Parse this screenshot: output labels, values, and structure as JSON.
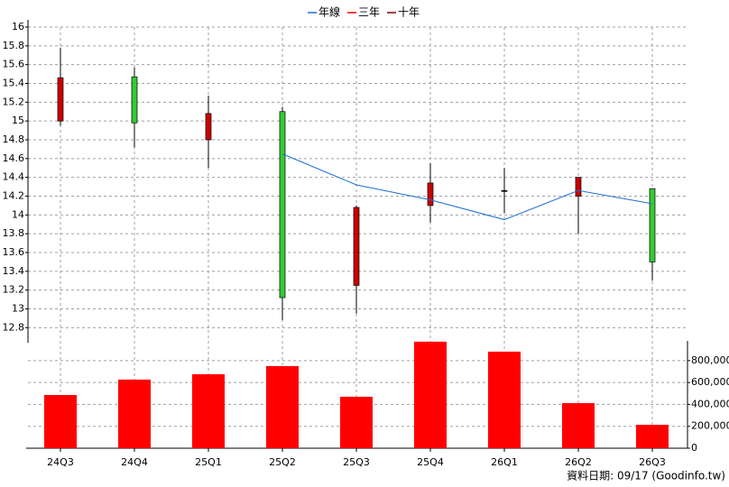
{
  "chart_data": {
    "type": "candlestick",
    "categories": [
      "24Q3",
      "24Q4",
      "25Q1",
      "25Q2",
      "25Q3",
      "25Q4",
      "26Q1",
      "26Q2",
      "26Q3"
    ],
    "open": [
      15.0,
      15.47,
      14.8,
      15.1,
      13.25,
      14.1,
      14.26,
      14.2,
      14.28
    ],
    "high": [
      15.78,
      15.57,
      15.27,
      15.15,
      14.1,
      14.55,
      14.5,
      14.4,
      14.28
    ],
    "low": [
      14.95,
      14.72,
      14.5,
      12.88,
      12.95,
      13.92,
      14.02,
      13.8,
      13.3
    ],
    "close": [
      15.46,
      14.98,
      15.08,
      13.12,
      14.08,
      14.34,
      14.26,
      14.4,
      13.5
    ],
    "up_color": "#cc0000",
    "down_color": "#33cc33",
    "flat_color": "#000000",
    "series": [
      {
        "name": "年線",
        "color": "#1f6fd0",
        "values": [
          null,
          null,
          null,
          14.65,
          14.32,
          14.16,
          13.95,
          14.26,
          14.12
        ]
      },
      {
        "name": "三年",
        "color": "#ff0000",
        "values": [
          null,
          null,
          null,
          null,
          null,
          null,
          null,
          null,
          null
        ]
      },
      {
        "name": "十年",
        "color": "#8b0000",
        "values": [
          null,
          null,
          null,
          null,
          null,
          null,
          null,
          null,
          null
        ]
      }
    ],
    "ylim": [
      12.64,
      16
    ],
    "yticks": [
      12.8,
      13,
      13.2,
      13.4,
      13.6,
      13.8,
      14,
      14.2,
      14.4,
      14.6,
      14.8,
      15,
      15.2,
      15.4,
      15.6,
      15.8,
      16
    ],
    "volume": {
      "color": "#ff0000",
      "values": [
        486000,
        627000,
        676000,
        750000,
        470000,
        973000,
        882000,
        412000,
        214000
      ],
      "ylim": [
        0,
        980000
      ],
      "yticks": [
        0,
        {
          "value": 200000,
          "label": "200,000"
        },
        {
          "value": 400000,
          "label": "400,000"
        },
        {
          "value": 600000,
          "label": "600,000"
        },
        {
          "value": 800000,
          "label": "800,000"
        }
      ]
    },
    "grid": true,
    "footer": "資料日期: 09/17  (Goodinfo.tw)"
  }
}
